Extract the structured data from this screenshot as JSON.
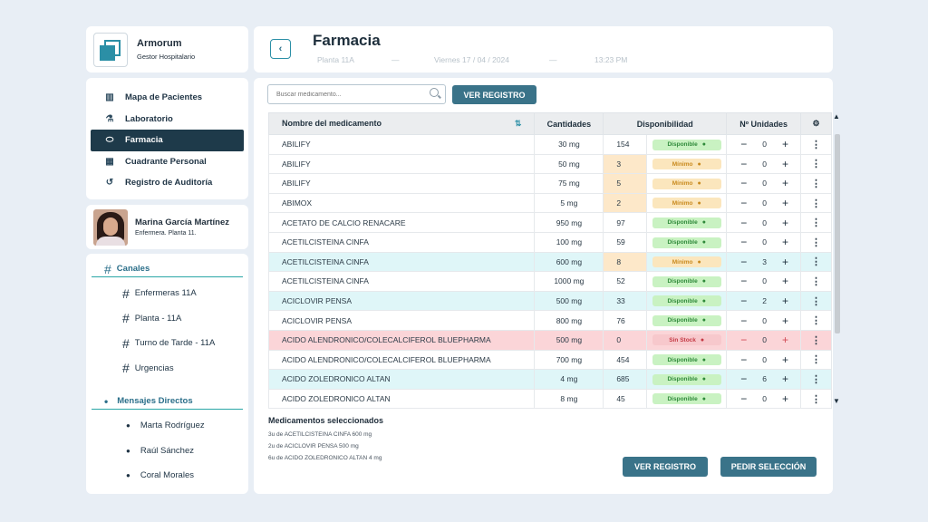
{
  "brand": {
    "name": "Armorum",
    "subtitle": "Gestor Hospitalario"
  },
  "nav": [
    {
      "label": "Mapa de Pacientes",
      "icon": "map-icon",
      "active": false
    },
    {
      "label": "Laboratorio",
      "icon": "test-tube-icon",
      "active": false
    },
    {
      "label": "Farmacia",
      "icon": "pill-icon",
      "active": true
    },
    {
      "label": "Cuadrante Personal",
      "icon": "calendar-icon",
      "active": false
    },
    {
      "label": "Registro de Auditoría",
      "icon": "history-icon",
      "active": false
    }
  ],
  "profile": {
    "name": "Marina García Martínez",
    "role": "Enfermera. Planta 11."
  },
  "channels": {
    "title": "Canales",
    "items": [
      "Enfermeras 11A",
      "Planta - 11A",
      "Turno de Tarde - 11A",
      "Urgencias"
    ],
    "dm_title": "Mensajes Directos",
    "dms": [
      "Marta Rodríguez",
      "Raúl Sánchez",
      "Coral Morales"
    ]
  },
  "header": {
    "title": "Farmacia",
    "floor": "Planta 11A",
    "date": "Viernes 17 / 04 / 2024",
    "time": "13:23 PM",
    "separator": "—"
  },
  "search": {
    "placeholder": "Buscar medicamento..."
  },
  "buttons": {
    "ver_registro": "VER REGISTRO",
    "pedir": "PEDIR SELECCIÓN"
  },
  "table": {
    "headers": {
      "name": "Nombre del medicamento",
      "cant": "Cantidades",
      "disp": "Disponibilidad",
      "units": "Nº Unidades"
    },
    "rows": [
      {
        "name": "ABILIFY",
        "dose": "30 mg",
        "stock": "154",
        "status": "Disponible",
        "kind": "ok",
        "units": "0",
        "row": ""
      },
      {
        "name": "ABILIFY",
        "dose": "50 mg",
        "stock": "3",
        "status": "Mínimo",
        "kind": "min",
        "units": "0",
        "row": ""
      },
      {
        "name": "ABILIFY",
        "dose": "75 mg",
        "stock": "5",
        "status": "Mínimo",
        "kind": "min",
        "units": "0",
        "row": ""
      },
      {
        "name": "ABIMOX",
        "dose": "5 mg",
        "stock": "2",
        "status": "Mínimo",
        "kind": "min",
        "units": "0",
        "row": ""
      },
      {
        "name": "ACETATO DE CALCIO RENACARE",
        "dose": "950 mg",
        "stock": "97",
        "status": "Disponible",
        "kind": "ok",
        "units": "0",
        "row": ""
      },
      {
        "name": "ACETILCISTEINA CINFA",
        "dose": "100 mg",
        "stock": "59",
        "status": "Disponible",
        "kind": "ok",
        "units": "0",
        "row": ""
      },
      {
        "name": "ACETILCISTEINA CINFA",
        "dose": "600 mg",
        "stock": "8",
        "status": "Mínimo",
        "kind": "min",
        "units": "3",
        "row": "sel"
      },
      {
        "name": "ACETILCISTEINA CINFA",
        "dose": "1000 mg",
        "stock": "52",
        "status": "Disponible",
        "kind": "ok",
        "units": "0",
        "row": ""
      },
      {
        "name": "ACICLOVIR PENSA",
        "dose": "500 mg",
        "stock": "33",
        "status": "Disponible",
        "kind": "ok",
        "units": "2",
        "row": "sel"
      },
      {
        "name": "ACICLOVIR PENSA",
        "dose": "800 mg",
        "stock": "76",
        "status": "Disponible",
        "kind": "ok",
        "units": "0",
        "row": ""
      },
      {
        "name": "ACIDO ALENDRONICO/COLECALCIFEROL BLUEPHARMA",
        "dose": "500 mg",
        "stock": "0",
        "status": "Sin Stock",
        "kind": "out",
        "units": "0",
        "row": "out"
      },
      {
        "name": "ACIDO ALENDRONICO/COLECALCIFEROL BLUEPHARMA",
        "dose": "700 mg",
        "stock": "454",
        "status": "Disponible",
        "kind": "ok",
        "units": "0",
        "row": ""
      },
      {
        "name": "ACIDO ZOLEDRONICO ALTAN",
        "dose": "4 mg",
        "stock": "685",
        "status": "Disponible",
        "kind": "ok",
        "units": "6",
        "row": "sel"
      },
      {
        "name": "ACIDO ZOLEDRONICO ALTAN",
        "dose": "8 mg",
        "stock": "45",
        "status": "Disponible",
        "kind": "ok",
        "units": "0",
        "row": ""
      }
    ]
  },
  "selected": {
    "title": "Medicamentos seleccionados",
    "lines": [
      "3u de  ACETILCISTEINA CINFA 600 mg",
      "2u de  ACICLOVIR PENSA 500 mg",
      "6u de ACIDO ZOLEDRONICO ALTAN 4 mg"
    ]
  },
  "colors": {
    "accent": "#3a7389",
    "active_nav": "#1e3a4a",
    "selected_row": "#dff6f8",
    "out_row": "#fbd5d8"
  }
}
